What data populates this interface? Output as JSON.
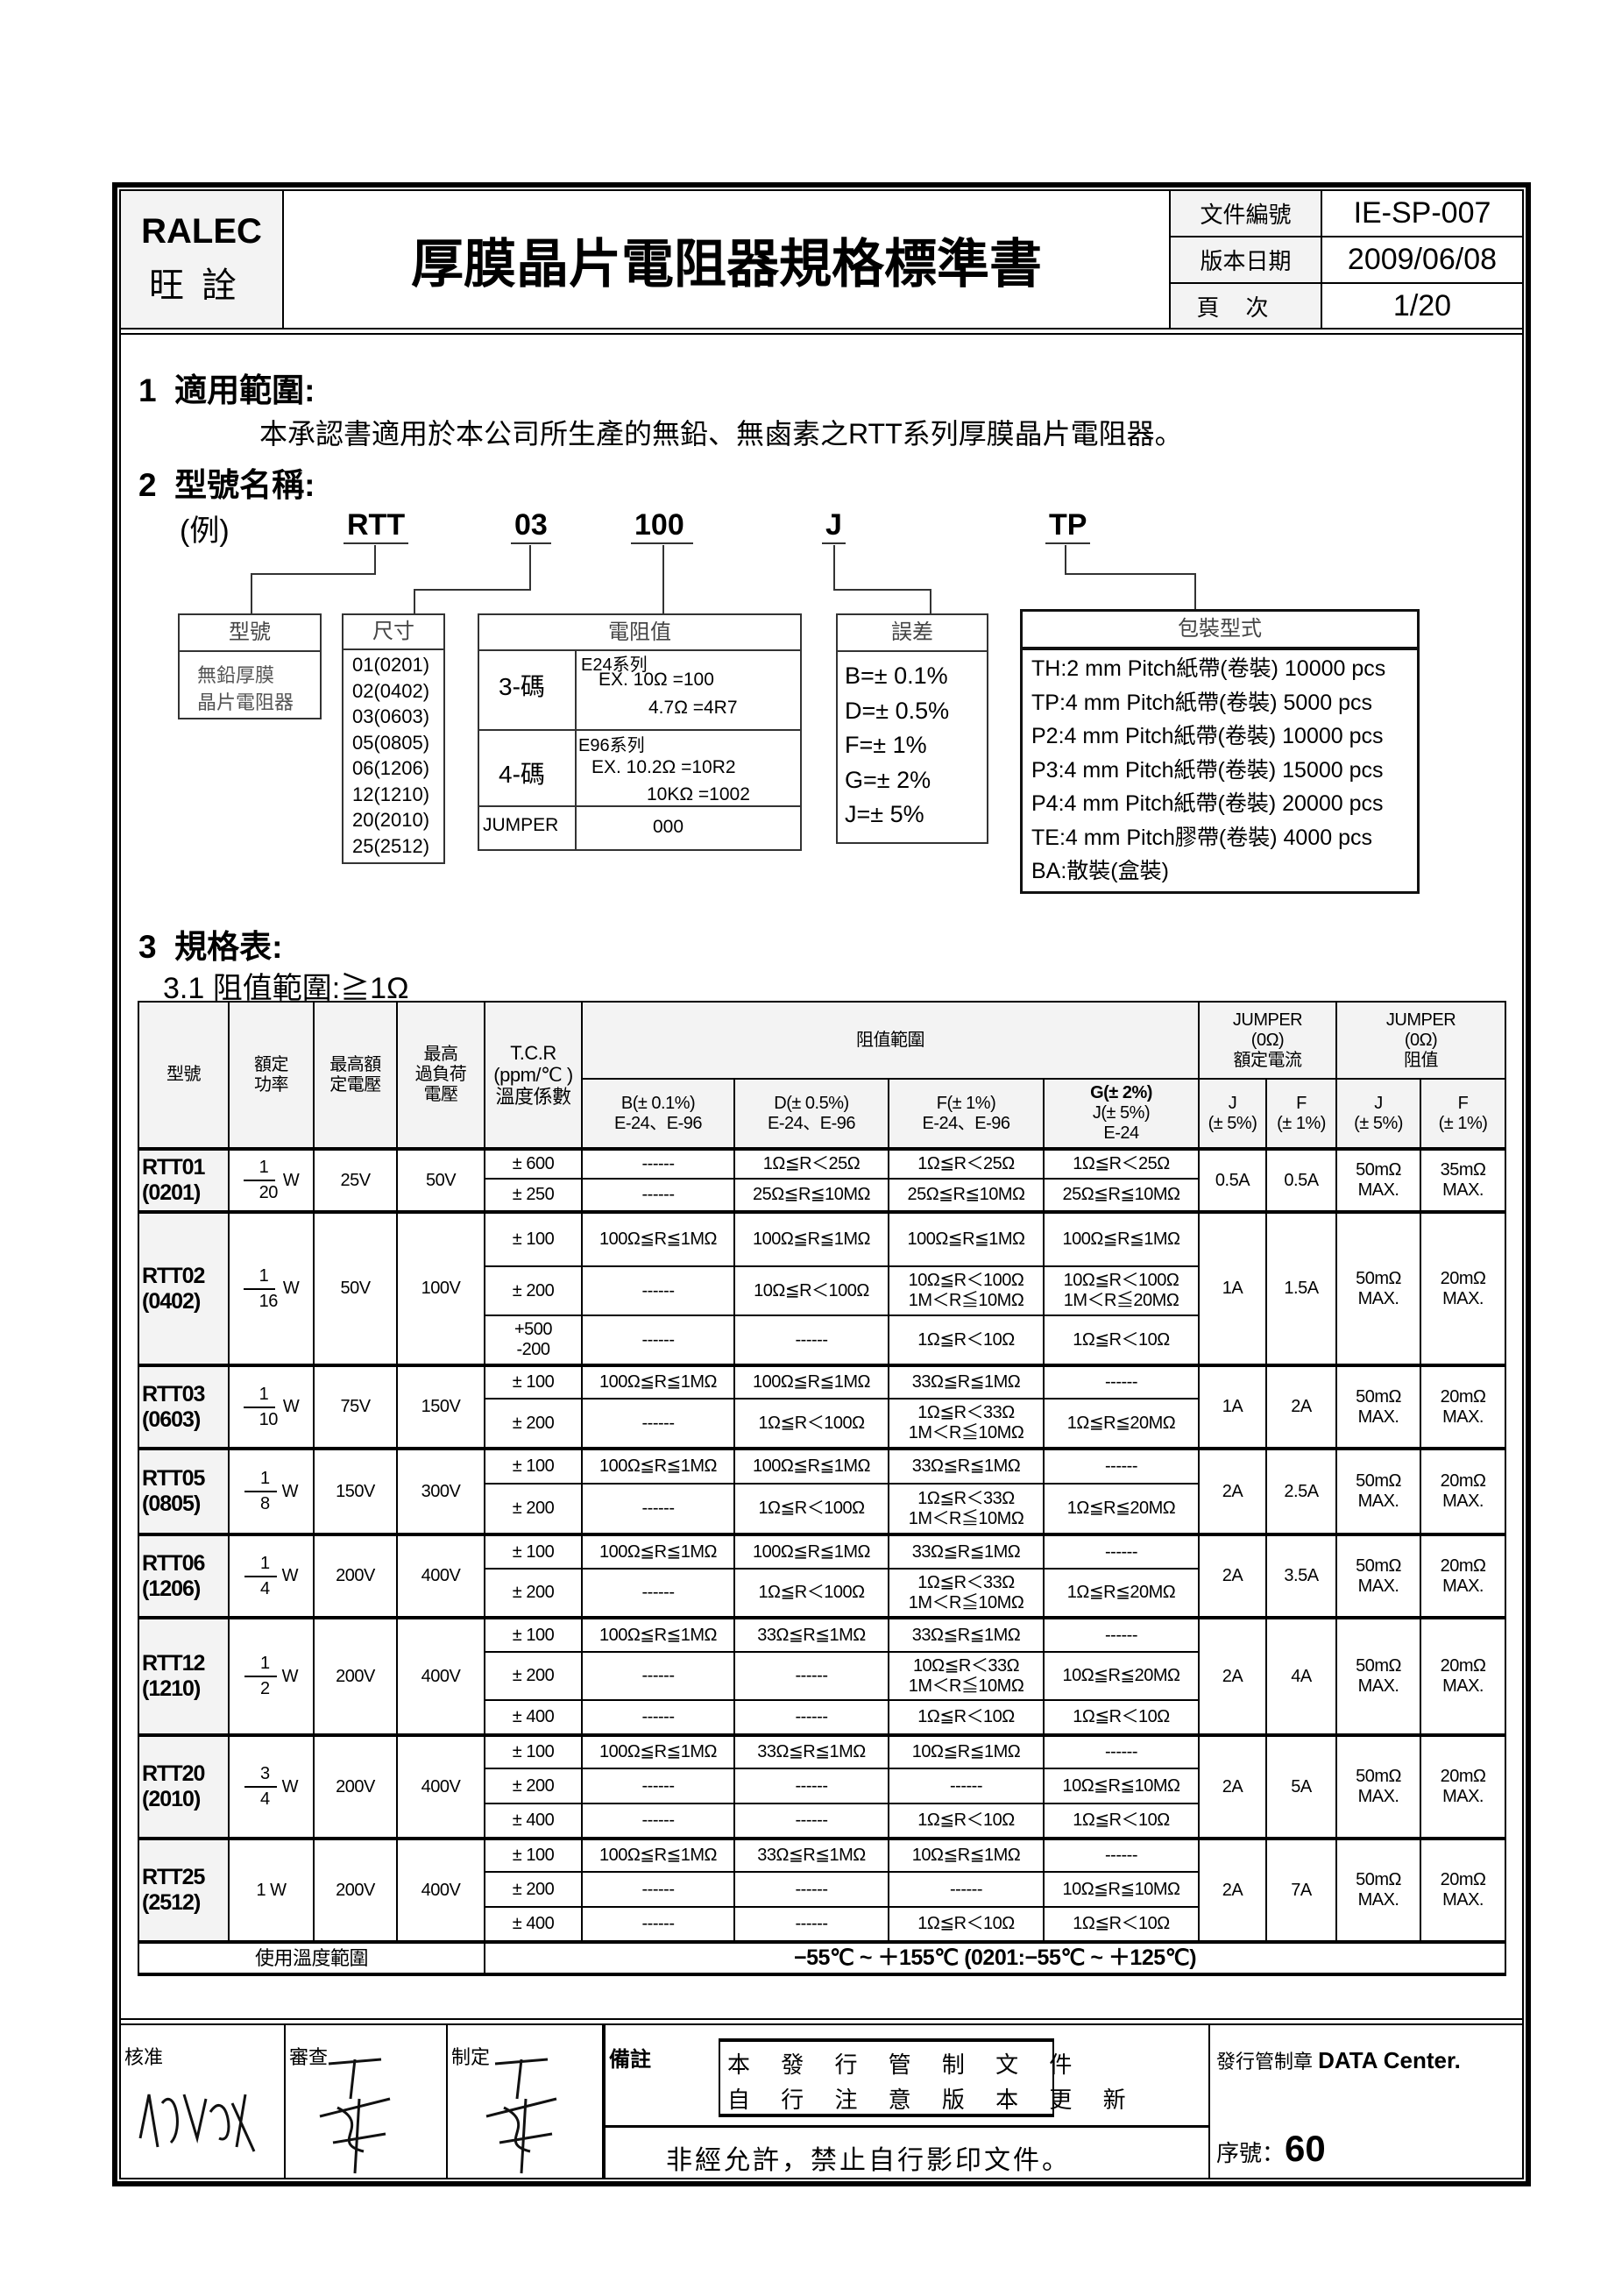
{
  "header": {
    "company_en": "RALEC",
    "company_zh": "旺詮",
    "title": "厚膜晶片電阻器規格標準書",
    "doc_no_label": "文件編號",
    "doc_no": "IE-SP-007",
    "version_date_label": "版本日期",
    "version_date": "2009/06/08",
    "page_label": "頁次",
    "page": "1/20"
  },
  "section1": {
    "number": "1",
    "heading": "適用範圍:",
    "body": "本承認書適用於本公司所生產的無鉛、無鹵素之RTT系列厚膜晶片電阻器。"
  },
  "section2": {
    "number": "2",
    "heading": "型號名稱:",
    "example_label": "(例)",
    "example_parts": [
      "RTT",
      "03",
      "100",
      "J",
      "TP"
    ],
    "type_box": {
      "title": "型號",
      "content": "無鉛厚膜\n晶片電阻器"
    },
    "size_box": {
      "title": "尺寸",
      "items": [
        "01(0201)",
        "02(0402)",
        "03(0603)",
        "05(0805)",
        "06(1206)",
        "12(1210)",
        "20(2010)",
        "25(2512)"
      ]
    },
    "resistance_box": {
      "title": "電阻值",
      "three_digit": {
        "label": "3-碼",
        "series": "E24系列",
        "ex1": "EX.   10Ω =100",
        "ex2": "4.7Ω =4R7"
      },
      "four_digit": {
        "label": "4-碼",
        "series": "E96系列",
        "ex1": "EX.   10.2Ω =10R2",
        "ex2": "10KΩ =1002"
      },
      "jumper": {
        "label": "JUMPER",
        "value": "000"
      }
    },
    "tolerance_box": {
      "title": "誤差",
      "items": [
        "B=±  0.1%",
        "D=±  0.5%",
        "F=±  1%",
        "G=±  2%",
        "J=±  5%"
      ]
    },
    "packaging_box": {
      "title": "包裝型式",
      "items": [
        "TH:2 mm Pitch紙帶(卷裝) 10000 pcs",
        "TP:4 mm Pitch紙帶(卷裝) 5000 pcs",
        "P2:4 mm Pitch紙帶(卷裝) 10000 pcs",
        "P3:4 mm Pitch紙帶(卷裝) 15000 pcs",
        "P4:4 mm Pitch紙帶(卷裝) 20000 pcs",
        "TE:4 mm Pitch膠帶(卷裝) 4000 pcs",
        "BA:散裝(盒裝)"
      ]
    }
  },
  "section3": {
    "number": "3",
    "heading": "規格表:",
    "sub": "3.1 阻值範圍:≧1Ω"
  },
  "table": {
    "headers": {
      "model": "型號",
      "power": "額定\n功率",
      "voltage": "最高額\n定電壓",
      "overload": "最高\n過負荷\n電壓",
      "tcr": "T.C.R\n(ppm/℃ )\n溫度係數",
      "range": "阻值範圍",
      "jumper_current": "JUMPER\n(0Ω)\n額定電流",
      "jumper_res": "JUMPER\n(0Ω)\n阻值",
      "b": "B(± 0.1%)\nE-24、E-96",
      "d": "D(± 0.5%)\nE-24、E-96",
      "f": "F(± 1%)\nE-24、E-96",
      "g_bold": "G(± 2%)",
      "g": "J(± 5%)\nE-24",
      "jj": "J\n(± 5%)",
      "jf": "F\n(± 1%)",
      "rj": "J\n(± 5%)",
      "rf": "F\n(± 1%)"
    },
    "rows": [
      {
        "model": "RTT01\n(0201)",
        "power_num": "1",
        "power_den": "20",
        "power_unit": "W",
        "voltage": "25V",
        "overload": "50V",
        "cur_j": "0.5A",
        "cur_f": "0.5A",
        "res_j": "50mΩ\nMAX.",
        "res_f": "35mΩ\nMAX.",
        "sub": [
          {
            "tcr": "± 600",
            "b": "------",
            "d": "1Ω≦R＜25Ω",
            "f": "1Ω≦R＜25Ω",
            "g": "1Ω≦R＜25Ω"
          },
          {
            "tcr": "± 250",
            "b": "------",
            "d": "25Ω≦R≦10MΩ",
            "f": "25Ω≦R≦10MΩ",
            "g": "25Ω≦R≦10MΩ"
          }
        ]
      },
      {
        "model": "RTT02\n(0402)",
        "power_num": "1",
        "power_den": "16",
        "power_unit": "W",
        "voltage": "50V",
        "overload": "100V",
        "cur_j": "1A",
        "cur_f": "1.5A",
        "res_j": "50mΩ\nMAX.",
        "res_f": "20mΩ\nMAX.",
        "sub": [
          {
            "tcr": "± 100",
            "b": "100Ω≦R≦1MΩ",
            "d": "100Ω≦R≦1MΩ",
            "f": "100Ω≦R≦1MΩ",
            "g": "100Ω≦R≦1MΩ"
          },
          {
            "tcr": "± 200",
            "b": "------",
            "d": "10Ω≦R＜100Ω",
            "f": "10Ω≦R＜100Ω\n1M＜R≦10MΩ",
            "g": "10Ω≦R＜100Ω\n1M＜R≦20MΩ"
          },
          {
            "tcr": "+500\n-200",
            "b": "------",
            "d": "------",
            "f": "1Ω≦R＜10Ω",
            "g": "1Ω≦R＜10Ω"
          }
        ]
      },
      {
        "model": "RTT03\n(0603)",
        "power_num": "1",
        "power_den": "10",
        "power_unit": "W",
        "voltage": "75V",
        "overload": "150V",
        "cur_j": "1A",
        "cur_f": "2A",
        "res_j": "50mΩ\nMAX.",
        "res_f": "20mΩ\nMAX.",
        "sub": [
          {
            "tcr": "± 100",
            "b": "100Ω≦R≦1MΩ",
            "d": "100Ω≦R≦1MΩ",
            "f": "33Ω≦R≦1MΩ",
            "g": "------"
          },
          {
            "tcr": "± 200",
            "b": "------",
            "d": "1Ω≦R＜100Ω",
            "f": "1Ω≦R＜33Ω\n1M＜R≦10MΩ",
            "g": "1Ω≦R≦20MΩ"
          }
        ]
      },
      {
        "model": "RTT05\n(0805)",
        "power_num": "1",
        "power_den": "8",
        "power_unit": "W",
        "voltage": "150V",
        "overload": "300V",
        "cur_j": "2A",
        "cur_f": "2.5A",
        "res_j": "50mΩ\nMAX.",
        "res_f": "20mΩ\nMAX.",
        "sub": [
          {
            "tcr": "± 100",
            "b": "100Ω≦R≦1MΩ",
            "d": "100Ω≦R≦1MΩ",
            "f": "33Ω≦R≦1MΩ",
            "g": "------"
          },
          {
            "tcr": "± 200",
            "b": "------",
            "d": "1Ω≦R＜100Ω",
            "f": "1Ω≦R＜33Ω\n1M＜R≦10MΩ",
            "g": "1Ω≦R≦20MΩ"
          }
        ]
      },
      {
        "model": "RTT06\n(1206)",
        "power_num": "1",
        "power_den": "4",
        "power_unit": "W",
        "voltage": "200V",
        "overload": "400V",
        "cur_j": "2A",
        "cur_f": "3.5A",
        "res_j": "50mΩ\nMAX.",
        "res_f": "20mΩ\nMAX.",
        "sub": [
          {
            "tcr": "± 100",
            "b": "100Ω≦R≦1MΩ",
            "d": "100Ω≦R≦1MΩ",
            "f": "33Ω≦R≦1MΩ",
            "g": "------"
          },
          {
            "tcr": "± 200",
            "b": "------",
            "d": "1Ω≦R＜100Ω",
            "f": "1Ω≦R＜33Ω\n1M＜R≦10MΩ",
            "g": "1Ω≦R≦20MΩ"
          }
        ]
      },
      {
        "model": "RTT12\n(1210)",
        "power_num": "1",
        "power_den": "2",
        "power_unit": "W",
        "voltage": "200V",
        "overload": "400V",
        "cur_j": "2A",
        "cur_f": "4A",
        "res_j": "50mΩ\nMAX.",
        "res_f": "20mΩ\nMAX.",
        "sub": [
          {
            "tcr": "± 100",
            "b": "100Ω≦R≦1MΩ",
            "d": "33Ω≦R≦1MΩ",
            "f": "33Ω≦R≦1MΩ",
            "g": "------"
          },
          {
            "tcr": "± 200",
            "b": "------",
            "d": "------",
            "f": "10Ω≦R＜33Ω\n1M＜R≦10MΩ",
            "g": "10Ω≦R≦20MΩ"
          },
          {
            "tcr": "± 400",
            "b": "------",
            "d": "------",
            "f": "1Ω≦R＜10Ω",
            "g": "1Ω≦R＜10Ω"
          }
        ]
      },
      {
        "model": "RTT20\n(2010)",
        "power_num": "3",
        "power_den": "4",
        "power_unit": "W",
        "voltage": "200V",
        "overload": "400V",
        "cur_j": "2A",
        "cur_f": "5A",
        "res_j": "50mΩ\nMAX.",
        "res_f": "20mΩ\nMAX.",
        "sub": [
          {
            "tcr": "± 100",
            "b": "100Ω≦R≦1MΩ",
            "d": "33Ω≦R≦1MΩ",
            "f": "10Ω≦R≦1MΩ",
            "g": "------"
          },
          {
            "tcr": "± 200",
            "b": "------",
            "d": "------",
            "f": "------",
            "g": "10Ω≦R≦10MΩ"
          },
          {
            "tcr": "± 400",
            "b": "------",
            "d": "------",
            "f": "1Ω≦R＜10Ω",
            "g": "1Ω≦R＜10Ω"
          }
        ]
      },
      {
        "model": "RTT25\n(2512)",
        "power_text": "1 W",
        "voltage": "200V",
        "overload": "400V",
        "cur_j": "2A",
        "cur_f": "7A",
        "res_j": "50mΩ\nMAX.",
        "res_f": "20mΩ\nMAX.",
        "sub": [
          {
            "tcr": "± 100",
            "b": "100Ω≦R≦1MΩ",
            "d": "33Ω≦R≦1MΩ",
            "f": "10Ω≦R≦1MΩ",
            "g": "------"
          },
          {
            "tcr": "± 200",
            "b": "------",
            "d": "------",
            "f": "------",
            "g": "10Ω≦R≦10MΩ"
          },
          {
            "tcr": "± 400",
            "b": "------",
            "d": "------",
            "f": "1Ω≦R＜10Ω",
            "g": "1Ω≦R＜10Ω"
          }
        ]
      }
    ],
    "temp_label": "使用溫度範圍",
    "temp_value": "−55℃ ~ ＋155℃  (0201:−55℃ ~ ＋125℃)"
  },
  "footer": {
    "approve_label": "核准",
    "review_label": "審查",
    "prepare_label": "制定",
    "remark_label": "備註",
    "stamp_line1": "本 發 行 管 制 文 件",
    "stamp_line2": "自 行 注 意 版 本 更 新",
    "notice": "非經允許，禁止自行影印文件。",
    "control_label": "發行管制章",
    "control_value": "DATA Center.",
    "serial_label": "序號：",
    "serial_value": "60"
  }
}
